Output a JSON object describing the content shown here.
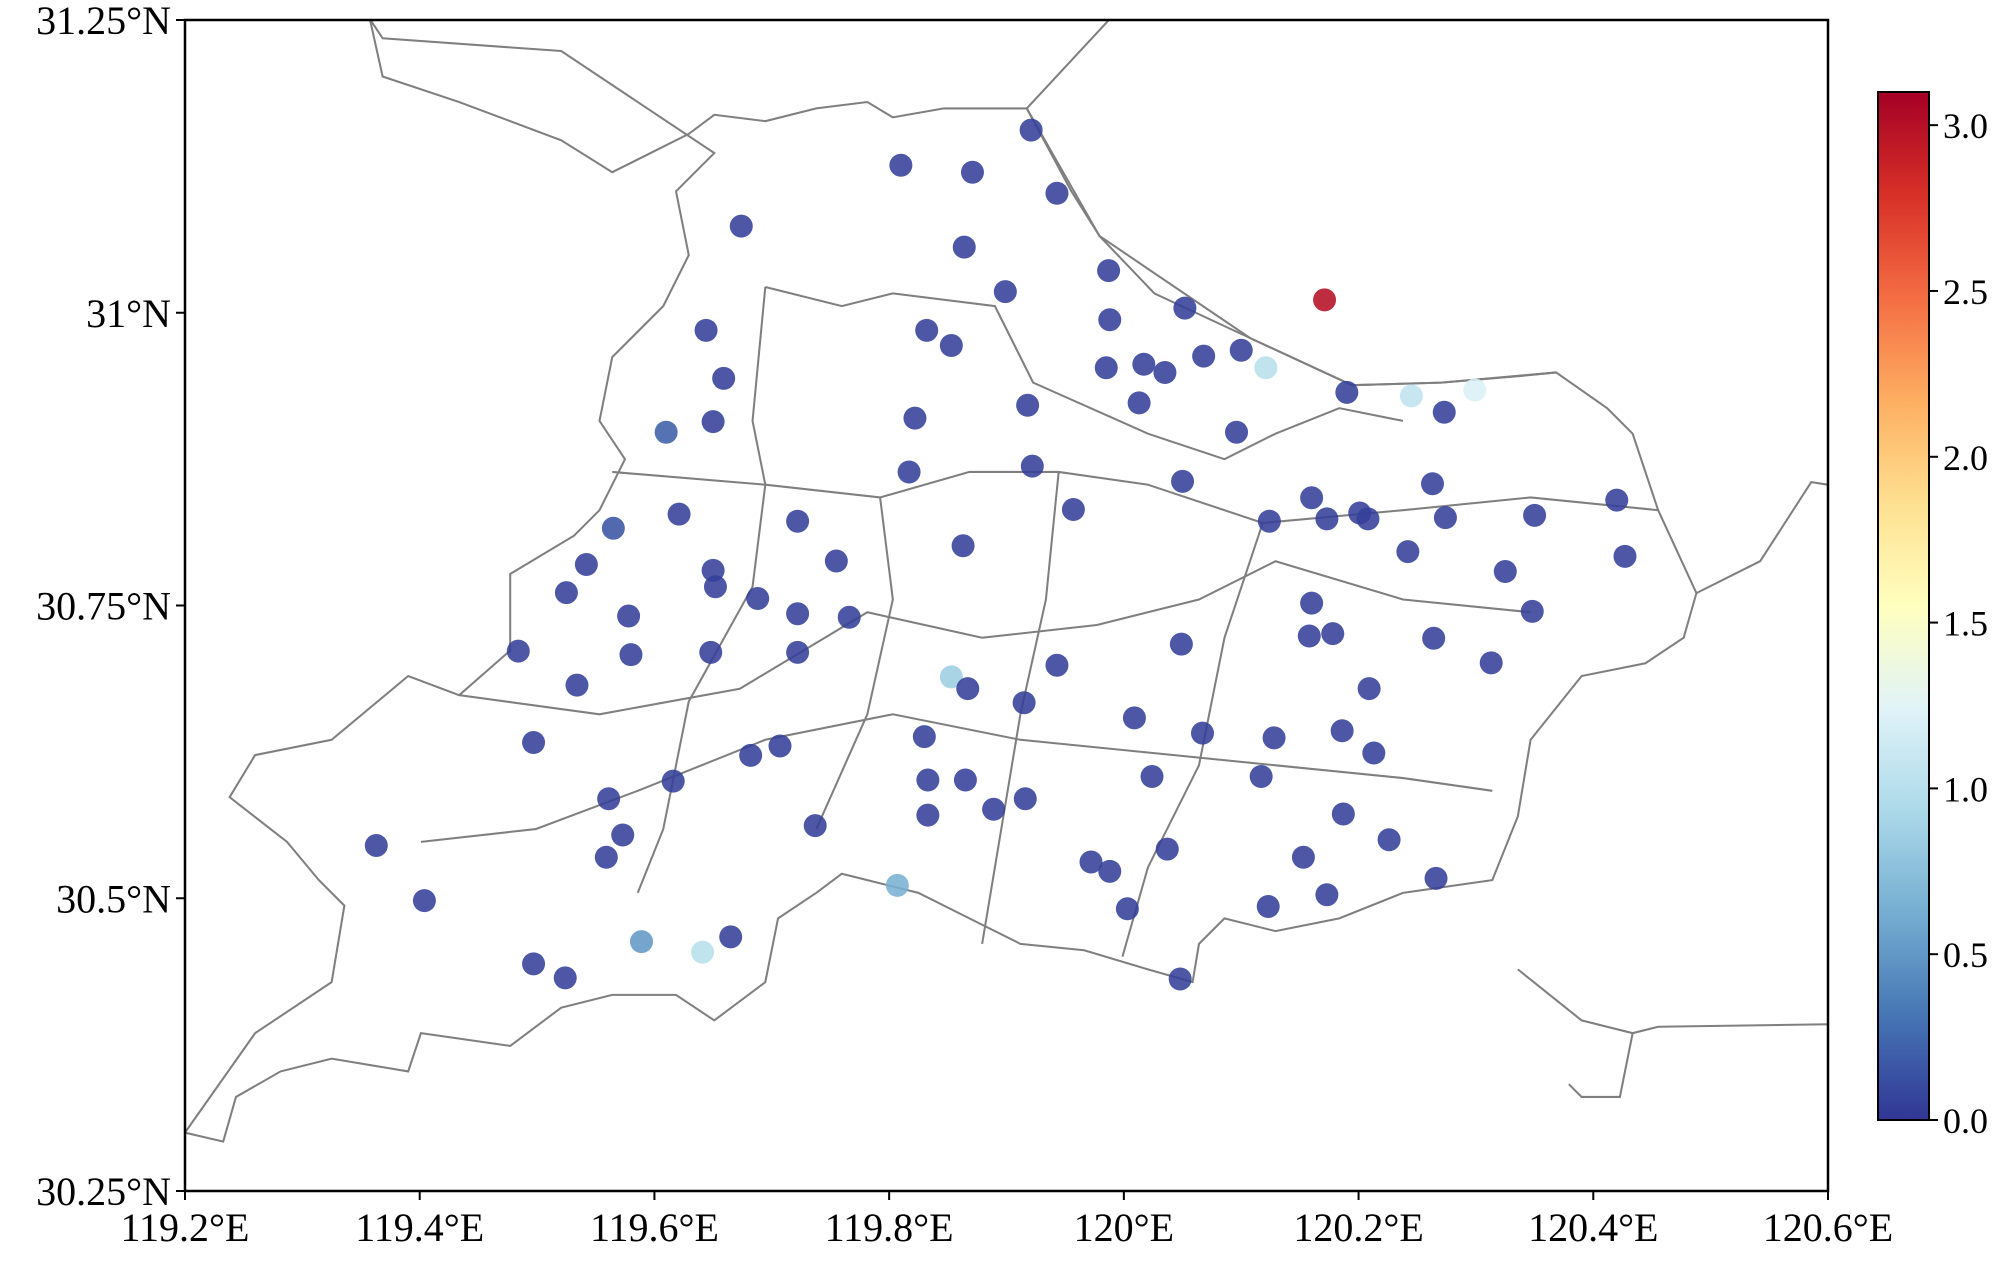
{
  "chart_data": {
    "type": "scatter",
    "x": [
      119.921,
      119.81,
      119.871,
      119.943,
      119.674,
      119.864,
      119.987,
      119.899,
      120.052,
      120.171,
      119.988,
      119.644,
      119.832,
      119.853,
      120.068,
      120.1,
      119.985,
      120.017,
      120.035,
      120.121,
      119.659,
      120.19,
      120.245,
      120.299,
      119.918,
      120.013,
      120.273,
      119.65,
      119.61,
      119.822,
      120.096,
      119.817,
      119.922,
      120.05,
      120.263,
      120.16,
      120.42,
      120.201,
      120.208,
      120.274,
      119.621,
      120.173,
      119.957,
      120.124,
      120.35,
      119.565,
      119.722,
      119.863,
      120.242,
      120.427,
      119.542,
      119.755,
      119.65,
      120.325,
      119.652,
      119.525,
      119.688,
      120.16,
      119.578,
      119.722,
      119.766,
      120.348,
      120.158,
      120.178,
      120.264,
      120.049,
      119.484,
      119.58,
      119.648,
      119.722,
      120.313,
      119.943,
      119.853,
      119.867,
      119.534,
      120.209,
      119.915,
      120.009,
      120.067,
      120.186,
      119.497,
      119.707,
      119.83,
      120.128,
      119.682,
      120.213,
      119.616,
      119.833,
      119.865,
      120.024,
      120.117,
      119.561,
      119.916,
      119.889,
      119.833,
      120.187,
      119.737,
      119.573,
      119.363,
      120.226,
      119.559,
      120.037,
      120.153,
      119.972,
      119.988,
      120.266,
      119.807,
      120.173,
      119.404,
      120.003,
      120.123,
      119.589,
      119.665,
      119.641,
      119.497,
      119.524,
      120.048
    ],
    "y": [
      31.156,
      31.126,
      31.12,
      31.102,
      31.074,
      31.056,
      31.036,
      31.018,
      31.004,
      31.011,
      30.994,
      30.985,
      30.985,
      30.972,
      30.963,
      30.968,
      30.953,
      30.956,
      30.949,
      30.953,
      30.944,
      30.932,
      30.929,
      30.934,
      30.921,
      30.923,
      30.915,
      30.907,
      30.898,
      30.91,
      30.898,
      30.864,
      30.869,
      30.856,
      30.854,
      30.842,
      30.84,
      30.829,
      30.824,
      30.825,
      30.828,
      30.824,
      30.832,
      30.822,
      30.827,
      30.816,
      30.822,
      30.801,
      30.796,
      30.792,
      30.785,
      30.788,
      30.78,
      30.779,
      30.766,
      30.761,
      30.756,
      30.752,
      30.741,
      30.743,
      30.74,
      30.745,
      30.724,
      30.726,
      30.722,
      30.717,
      30.711,
      30.708,
      30.71,
      30.71,
      30.701,
      30.699,
      30.689,
      30.679,
      30.682,
      30.679,
      30.667,
      30.654,
      30.641,
      30.643,
      30.633,
      30.63,
      30.638,
      30.637,
      30.622,
      30.624,
      30.6,
      30.601,
      30.601,
      30.604,
      30.604,
      30.585,
      30.585,
      30.576,
      30.571,
      30.572,
      30.562,
      30.554,
      30.545,
      30.55,
      30.535,
      30.542,
      30.535,
      30.531,
      30.523,
      30.517,
      30.511,
      30.503,
      30.498,
      30.491,
      30.493,
      30.463,
      30.467,
      30.454,
      30.444,
      30.432,
      30.431
    ],
    "values": [
      0.05,
      0.05,
      0.05,
      0.05,
      0.05,
      0.05,
      0.05,
      0.05,
      0.05,
      3.0,
      0.05,
      0.05,
      0.05,
      0.05,
      0.05,
      0.05,
      0.05,
      0.05,
      0.05,
      1.0,
      0.05,
      0.05,
      1.05,
      1.2,
      0.05,
      0.05,
      0.05,
      0.05,
      0.2,
      0.05,
      0.05,
      0.05,
      0.05,
      0.05,
      0.05,
      0.05,
      0.05,
      0.05,
      0.05,
      0.05,
      0.05,
      0.05,
      0.05,
      0.05,
      0.05,
      0.15,
      0.05,
      0.05,
      0.05,
      0.05,
      0.05,
      0.05,
      0.05,
      0.05,
      0.05,
      0.05,
      0.05,
      0.05,
      0.05,
      0.05,
      0.05,
      0.05,
      0.05,
      0.05,
      0.05,
      0.05,
      0.05,
      0.05,
      0.05,
      0.05,
      0.05,
      0.05,
      0.85,
      0.05,
      0.05,
      0.05,
      0.05,
      0.05,
      0.05,
      0.05,
      0.05,
      0.05,
      0.05,
      0.05,
      0.05,
      0.05,
      0.05,
      0.05,
      0.05,
      0.05,
      0.05,
      0.05,
      0.05,
      0.05,
      0.05,
      0.05,
      0.05,
      0.05,
      0.05,
      0.05,
      0.05,
      0.05,
      0.05,
      0.05,
      0.05,
      0.05,
      0.65,
      0.05,
      0.05,
      0.05,
      0.05,
      0.5,
      0.05,
      1.0,
      0.05,
      0.05,
      0.05
    ],
    "xlim": [
      119.2,
      120.6
    ],
    "ylim": [
      30.25,
      31.25
    ],
    "xticks": [
      {
        "value": 119.2,
        "label": "119.2°E"
      },
      {
        "value": 119.4,
        "label": "119.4°E"
      },
      {
        "value": 119.6,
        "label": "119.6°E"
      },
      {
        "value": 119.8,
        "label": "119.8°E"
      },
      {
        "value": 120.0,
        "label": "120°E"
      },
      {
        "value": 120.2,
        "label": "120.2°E"
      },
      {
        "value": 120.4,
        "label": "120.4°E"
      },
      {
        "value": 120.6,
        "label": "120.6°E"
      }
    ],
    "yticks": [
      {
        "value": 30.25,
        "label": "30.25°N"
      },
      {
        "value": 30.5,
        "label": "30.5°N"
      },
      {
        "value": 30.75,
        "label": "30.75°N"
      },
      {
        "value": 31.0,
        "label": "31°N"
      },
      {
        "value": 31.25,
        "label": "31.25°N"
      }
    ],
    "clim": [
      0,
      3.1
    ],
    "cticks": [
      {
        "value": 0,
        "label": "0.0"
      },
      0.5,
      {
        "value": 1,
        "label": "1.0"
      },
      1.5,
      {
        "value": 2,
        "label": "2.0"
      },
      2.5,
      {
        "value": 3,
        "label": "3.0"
      }
    ],
    "colormap": [
      "#313695",
      "#4575b4",
      "#74add1",
      "#abd9e9",
      "#e0f3f8",
      "#ffffbf",
      "#fee090",
      "#fdae61",
      "#f46d43",
      "#d73027",
      "#a50026"
    ]
  }
}
